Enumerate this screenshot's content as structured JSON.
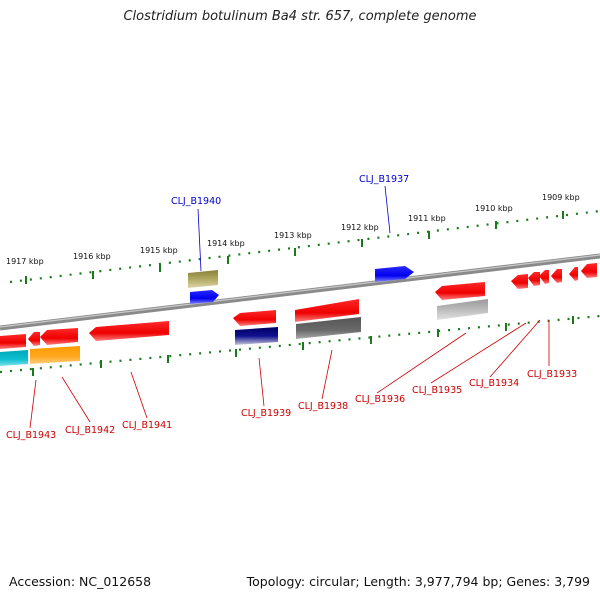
{
  "title": "Clostridium botulinum Ba4 str. 657, complete genome",
  "footer": {
    "accession": "Accession: NC_012658",
    "summary": "Topology: circular; Length: 3,977,794 bp; Genes: 3,799"
  },
  "ticks": [
    "1909 kbp",
    "1910 kbp",
    "1911 kbp",
    "1912 kbp",
    "1913 kbp",
    "1914 kbp",
    "1915 kbp",
    "1916 kbp",
    "1917 kbp"
  ],
  "genes": [
    {
      "label": "CLJ_B1940",
      "color": "#0000cc"
    },
    {
      "label": "CLJ_B1937",
      "color": "#0000cc"
    },
    {
      "label": "CLJ_B1943",
      "color": "#cc0000"
    },
    {
      "label": "CLJ_B1942",
      "color": "#cc0000"
    },
    {
      "label": "CLJ_B1941",
      "color": "#cc0000"
    },
    {
      "label": "CLJ_B1939",
      "color": "#cc0000"
    },
    {
      "label": "CLJ_B1938",
      "color": "#cc0000"
    },
    {
      "label": "CLJ_B1936",
      "color": "#cc0000"
    },
    {
      "label": "CLJ_B1935",
      "color": "#cc0000"
    },
    {
      "label": "CLJ_B1934",
      "color": "#cc0000"
    },
    {
      "label": "CLJ_B1933",
      "color": "#cc0000"
    }
  ]
}
